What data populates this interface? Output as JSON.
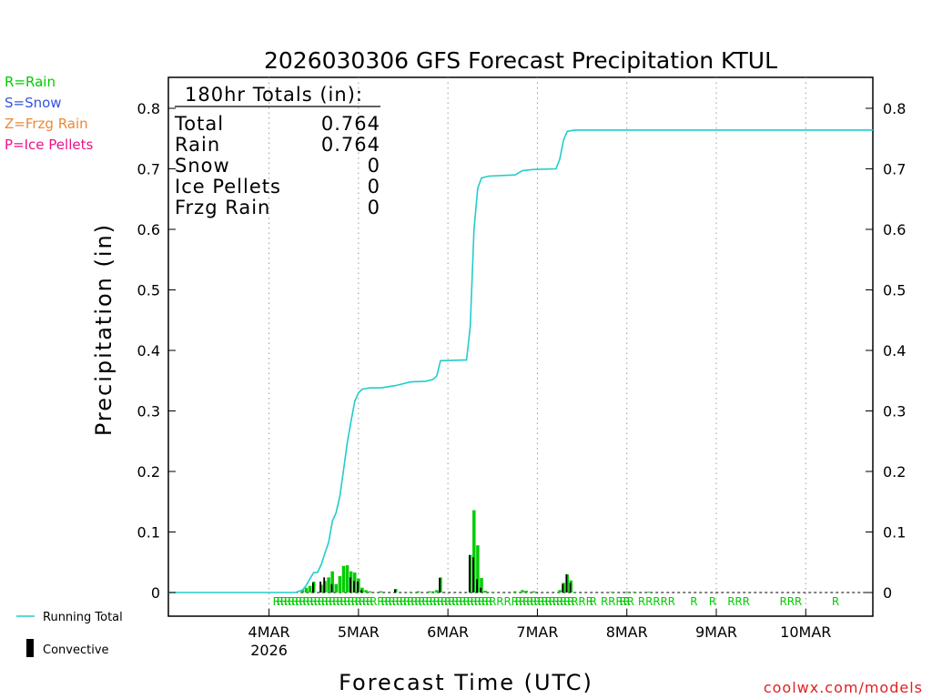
{
  "chart_data": {
    "type": "bar",
    "title": "2026030306 GFS Forecast Precipitation KTUL",
    "xlabel": "Forecast Time (UTC)",
    "ylabel": "Precipitation (in)",
    "ylim": [
      0,
      0.85
    ],
    "y_ticks": [
      "0",
      "0.1",
      "0.2",
      "0.3",
      "0.4",
      "0.5",
      "0.6",
      "0.7",
      "0.8"
    ],
    "x_range_hours": [
      -9,
      180
    ],
    "x_ticks": [
      {
        "hour": 18,
        "label": "4MAR",
        "sub": "2026"
      },
      {
        "hour": 42,
        "label": "5MAR",
        "sub": ""
      },
      {
        "hour": 66,
        "label": "6MAR",
        "sub": ""
      },
      {
        "hour": 90,
        "label": "7MAR",
        "sub": ""
      },
      {
        "hour": 114,
        "label": "8MAR",
        "sub": ""
      },
      {
        "hour": 138,
        "label": "9MAR",
        "sub": ""
      },
      {
        "hour": 162,
        "label": "10MAR",
        "sub": ""
      }
    ],
    "precip_bars": [
      [
        27,
        0.004
      ],
      [
        28,
        0.008
      ],
      [
        29,
        0.011
      ],
      [
        30,
        0.018
      ],
      [
        32,
        0.013
      ],
      [
        33,
        0.019
      ],
      [
        34,
        0.025
      ],
      [
        35,
        0.035
      ],
      [
        36,
        0.014
      ],
      [
        37,
        0.027
      ],
      [
        38,
        0.044
      ],
      [
        39,
        0.045
      ],
      [
        40,
        0.035
      ],
      [
        41,
        0.033
      ],
      [
        42,
        0.023
      ],
      [
        43,
        0.008
      ],
      [
        44,
        0.004
      ],
      [
        45,
        0.002
      ],
      [
        48,
        0.002
      ],
      [
        52,
        0.006
      ],
      [
        56,
        0.001
      ],
      [
        58,
        0.002
      ],
      [
        61,
        0.002
      ],
      [
        62,
        0.002
      ],
      [
        63,
        0.004
      ],
      [
        64,
        0.025
      ],
      [
        72,
        0.062
      ],
      [
        73,
        0.136
      ],
      [
        74,
        0.078
      ],
      [
        75,
        0.024
      ],
      [
        76,
        0.003
      ],
      [
        78,
        0.001
      ],
      [
        84,
        0.002
      ],
      [
        86,
        0.004
      ],
      [
        87,
        0.003
      ],
      [
        89,
        0.002
      ],
      [
        96,
        0.004
      ],
      [
        97,
        0.016
      ],
      [
        98,
        0.03
      ],
      [
        99,
        0.02
      ],
      [
        100,
        0.001
      ],
      [
        110,
        0.001
      ],
      [
        114,
        0.001
      ],
      [
        116,
        0.001
      ],
      [
        120,
        0.001
      ]
    ],
    "convective_bars": [
      [
        30,
        0.016
      ],
      [
        32,
        0.018
      ],
      [
        33,
        0.025
      ],
      [
        35,
        0.014
      ],
      [
        40,
        0.025
      ],
      [
        41,
        0.019
      ],
      [
        42,
        0.018
      ],
      [
        43,
        0.004
      ],
      [
        52,
        0.005
      ],
      [
        64,
        0.024
      ],
      [
        72,
        0.062
      ],
      [
        73,
        0.058
      ],
      [
        74,
        0.022
      ],
      [
        75,
        0.008
      ],
      [
        97,
        0.014
      ],
      [
        98,
        0.03
      ],
      [
        99,
        0.016
      ]
    ],
    "running_total": [
      [
        -9,
        0
      ],
      [
        25,
        0
      ],
      [
        27,
        0.004
      ],
      [
        28,
        0.012
      ],
      [
        29,
        0.023
      ],
      [
        30,
        0.033
      ],
      [
        31,
        0.033
      ],
      [
        32,
        0.046
      ],
      [
        33,
        0.065
      ],
      [
        34,
        0.083
      ],
      [
        35,
        0.118
      ],
      [
        36,
        0.132
      ],
      [
        37,
        0.159
      ],
      [
        38,
        0.203
      ],
      [
        39,
        0.248
      ],
      [
        40,
        0.283
      ],
      [
        41,
        0.316
      ],
      [
        42,
        0.33
      ],
      [
        43,
        0.336
      ],
      [
        45,
        0.338
      ],
      [
        48,
        0.338
      ],
      [
        52,
        0.342
      ],
      [
        56,
        0.348
      ],
      [
        60,
        0.349
      ],
      [
        62,
        0.352
      ],
      [
        63,
        0.358
      ],
      [
        64,
        0.383
      ],
      [
        70,
        0.384
      ],
      [
        71,
        0.384
      ],
      [
        72,
        0.44
      ],
      [
        73,
        0.6
      ],
      [
        74,
        0.668
      ],
      [
        75,
        0.685
      ],
      [
        77,
        0.688
      ],
      [
        84,
        0.69
      ],
      [
        86,
        0.697
      ],
      [
        89,
        0.699
      ],
      [
        95,
        0.7
      ],
      [
        96,
        0.716
      ],
      [
        97,
        0.747
      ],
      [
        98,
        0.762
      ],
      [
        100,
        0.764
      ],
      [
        180,
        0.764
      ]
    ],
    "rain_hours": [
      20,
      21,
      22,
      23,
      24,
      25,
      26,
      27,
      28,
      29,
      30,
      31,
      32,
      33,
      34,
      35,
      36,
      37,
      38,
      39,
      40,
      41,
      42,
      43,
      44,
      45,
      46,
      48,
      49,
      50,
      51,
      52,
      53,
      54,
      55,
      56,
      57,
      58,
      59,
      60,
      61,
      62,
      63,
      64,
      65,
      66,
      67,
      68,
      69,
      70,
      71,
      72,
      73,
      74,
      75,
      76,
      77,
      78,
      80,
      82,
      84,
      85,
      86,
      87,
      88,
      89,
      90,
      91,
      92,
      93,
      94,
      95,
      96,
      97,
      98,
      99,
      100,
      102,
      104,
      105,
      108,
      110,
      112,
      113,
      114,
      115,
      118,
      120,
      122,
      124,
      126,
      132,
      137,
      142,
      144,
      146,
      156,
      158,
      160,
      170
    ],
    "totals": {
      "header": "180hr Totals (in):",
      "rows": [
        {
          "label": "Total",
          "value": "0.764"
        },
        {
          "label": "Rain",
          "value": "0.764"
        },
        {
          "label": "Snow",
          "value": "0"
        },
        {
          "label": "Ice Pellets",
          "value": "0"
        },
        {
          "label": "Frzg Rain",
          "value": "0"
        }
      ]
    }
  },
  "legend": {
    "rain": "R=Rain",
    "snow": "S=Snow",
    "frzg": "Z=Frzg Rain",
    "ice": "P=Ice Pellets",
    "running_total": "Running Total",
    "convective": "Convective"
  },
  "rain_symbol": "R",
  "credit": "coolwx.com/models",
  "colors": {
    "rain": "#00cc00",
    "snow": "#3355dd",
    "frzg": "#ee8833",
    "ice": "#ee1188",
    "running_total": "#22cccc",
    "convective": "#000000",
    "credit": "#e02020"
  }
}
